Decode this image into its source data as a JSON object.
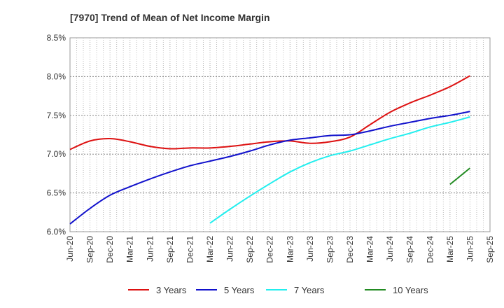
{
  "chart_data": {
    "type": "line",
    "title": "[7970]  Trend of Mean of Net Income Margin",
    "xlabel": "",
    "ylabel": "",
    "ylim": [
      6.0,
      8.5
    ],
    "y_ticks": [
      "6.0%",
      "6.5%",
      "7.0%",
      "7.5%",
      "8.0%",
      "8.5%"
    ],
    "y_tick_values": [
      6.0,
      6.5,
      7.0,
      7.5,
      8.0,
      8.5
    ],
    "categories": [
      "Jun-20",
      "Sep-20",
      "Dec-20",
      "Mar-21",
      "Jun-21",
      "Sep-21",
      "Dec-21",
      "Mar-22",
      "Jun-22",
      "Sep-22",
      "Dec-22",
      "Mar-23",
      "Jun-23",
      "Sep-23",
      "Dec-23",
      "Mar-24",
      "Jun-24",
      "Sep-24",
      "Dec-24",
      "Mar-25",
      "Jun-25",
      "Sep-25"
    ],
    "grid": true,
    "legend_position": "bottom",
    "series": [
      {
        "name": "3 Years",
        "color": "#dd1111",
        "values": [
          7.06,
          7.17,
          7.2,
          7.16,
          7.1,
          7.07,
          7.08,
          7.08,
          7.1,
          7.13,
          7.16,
          7.17,
          7.14,
          7.16,
          7.22,
          7.38,
          7.54,
          7.66,
          7.76,
          7.87,
          8.01,
          null
        ]
      },
      {
        "name": "5 Years",
        "color": "#1111cc",
        "values": [
          6.1,
          6.3,
          6.47,
          6.58,
          6.68,
          6.77,
          6.85,
          6.91,
          6.97,
          7.04,
          7.12,
          7.18,
          7.21,
          7.24,
          7.25,
          7.3,
          7.36,
          7.41,
          7.46,
          7.5,
          7.55,
          null
        ]
      },
      {
        "name": "7 Years",
        "color": "#22eeee",
        "values": [
          null,
          null,
          null,
          null,
          null,
          null,
          null,
          6.11,
          6.29,
          6.46,
          6.62,
          6.77,
          6.89,
          6.98,
          7.04,
          7.12,
          7.2,
          7.27,
          7.35,
          7.41,
          7.48,
          null
        ]
      },
      {
        "name": "10 Years",
        "color": "#228b22",
        "values": [
          null,
          null,
          null,
          null,
          null,
          null,
          null,
          null,
          null,
          null,
          null,
          null,
          null,
          null,
          null,
          null,
          null,
          null,
          null,
          6.61,
          6.82,
          null
        ]
      }
    ]
  }
}
